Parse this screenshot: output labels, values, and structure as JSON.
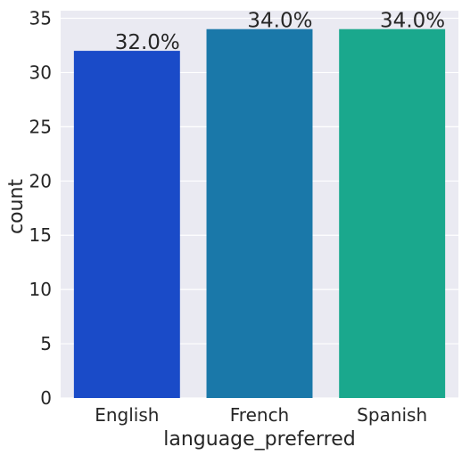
{
  "chart_data": {
    "type": "bar",
    "categories": [
      "English",
      "French",
      "Spanish"
    ],
    "values": [
      32,
      34,
      34
    ],
    "data_labels": [
      "32.0%",
      "34.0%",
      "34.0%"
    ],
    "xlabel": "language_preferred",
    "ylabel": "count",
    "ylim": [
      0,
      35.7
    ],
    "yticks": [
      0,
      5,
      10,
      15,
      20,
      25,
      30,
      35
    ],
    "grid": true,
    "legend": "none",
    "colors": [
      "#1a4bc8",
      "#1a78a9",
      "#1aa88d"
    ],
    "background_color": "#eaeaf2",
    "gridline_color": "#ffffff"
  }
}
